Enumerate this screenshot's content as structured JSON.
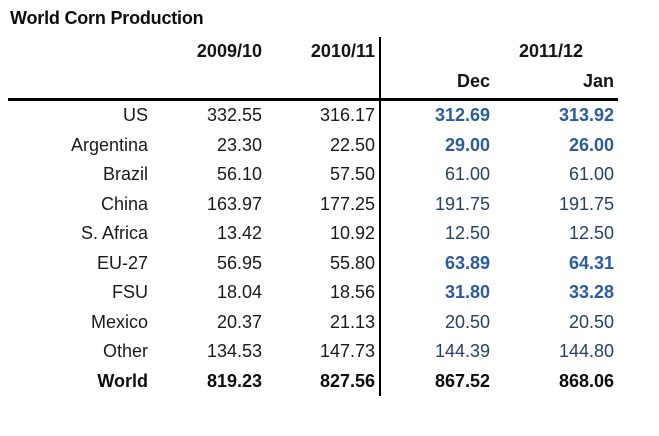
{
  "title": "World Corn Production",
  "header": {
    "year1": "2009/10",
    "year2": "2010/11",
    "year_group": "2011/12",
    "sub_month_1": "Dec",
    "sub_month_2": "Jan"
  },
  "rows": [
    {
      "label": "US",
      "y2009_10": "332.55",
      "y2010_11": "316.17",
      "dec": "312.69",
      "jan": "313.92",
      "changed": true
    },
    {
      "label": "Argentina",
      "y2009_10": "23.30",
      "y2010_11": "22.50",
      "dec": "29.00",
      "jan": "26.00",
      "changed": true
    },
    {
      "label": "Brazil",
      "y2009_10": "56.10",
      "y2010_11": "57.50",
      "dec": "61.00",
      "jan": "61.00",
      "changed": false
    },
    {
      "label": "China",
      "y2009_10": "163.97",
      "y2010_11": "177.25",
      "dec": "191.75",
      "jan": "191.75",
      "changed": false
    },
    {
      "label": "S. Africa",
      "y2009_10": "13.42",
      "y2010_11": "10.92",
      "dec": "12.50",
      "jan": "12.50",
      "changed": false
    },
    {
      "label": "EU-27",
      "y2009_10": "56.95",
      "y2010_11": "55.80",
      "dec": "63.89",
      "jan": "64.31",
      "changed": true
    },
    {
      "label": "FSU",
      "y2009_10": "18.04",
      "y2010_11": "18.56",
      "dec": "31.80",
      "jan": "33.28",
      "changed": true
    },
    {
      "label": "Mexico",
      "y2009_10": "20.37",
      "y2010_11": "21.13",
      "dec": "20.50",
      "jan": "20.50",
      "changed": false
    },
    {
      "label": "Other",
      "y2009_10": "134.53",
      "y2010_11": "147.73",
      "dec": "144.39",
      "jan": "144.80",
      "changed": false
    },
    {
      "label": "World",
      "y2009_10": "819.23",
      "y2010_11": "827.56",
      "dec": "867.52",
      "jan": "868.06",
      "changed": false,
      "bold": true
    }
  ],
  "colors": {
    "revised_value_blue": "#2B5C9F",
    "current_value_navy": "#26406B",
    "text_black": "#1a1a1a",
    "rule_black": "#000000"
  }
}
